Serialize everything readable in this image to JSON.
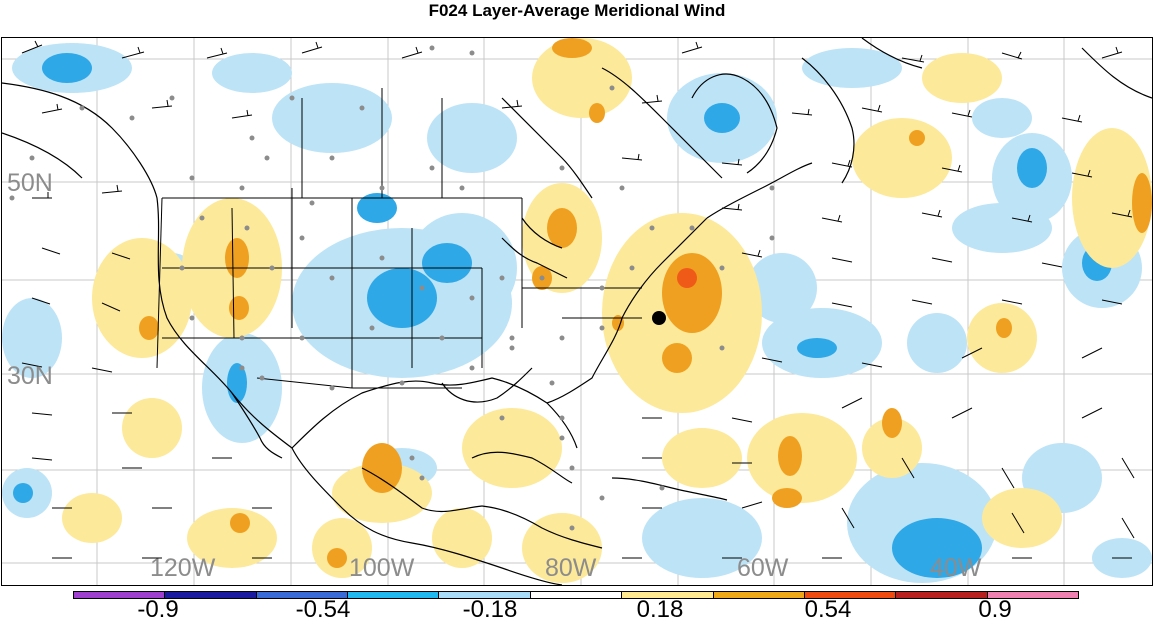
{
  "title": "F024 Layer-Average Meridional Wind",
  "lat_labels": [
    "50N",
    "30N"
  ],
  "lon_labels": [
    "120W",
    "100W",
    "80W",
    "60W",
    "40W"
  ],
  "colorbar": {
    "labels": [
      "-0.9",
      "-0.54",
      "-0.18",
      "0.18",
      "0.54",
      "0.9"
    ],
    "colors": [
      "#a040d0",
      "#1a1aa0",
      "#3a6ad8",
      "#20b8f0",
      "#a8dcf8",
      "#ffffff",
      "#ffe890",
      "#f0a818",
      "#f04a10",
      "#b82020",
      "#f080b0"
    ]
  },
  "map_colors": {
    "light_blue": "#bde3f7",
    "medium_blue": "#2fa8e8",
    "light_yellow": "#fde99a",
    "orange": "#f0a020",
    "red_orange": "#f05a18",
    "station_dot": "#8c8c8c",
    "grid": "#c8c8c8"
  }
}
